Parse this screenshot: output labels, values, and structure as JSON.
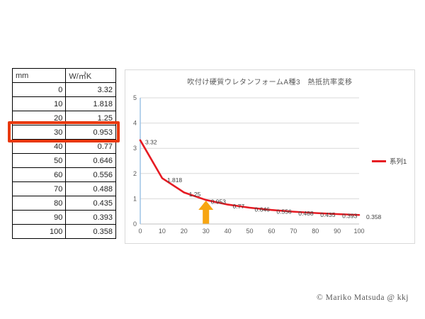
{
  "table": {
    "headers": [
      "mm",
      "W/㎡K"
    ],
    "rows": [
      [
        "0",
        "3.32"
      ],
      [
        "10",
        "1.818"
      ],
      [
        "20",
        "1.25"
      ],
      [
        "30",
        "0.953"
      ],
      [
        "40",
        "0.77"
      ],
      [
        "50",
        "0.646"
      ],
      [
        "60",
        "0.556"
      ],
      [
        "70",
        "0.488"
      ],
      [
        "80",
        "0.435"
      ],
      [
        "90",
        "0.393"
      ],
      [
        "100",
        "0.358"
      ]
    ],
    "highlight_row_index": 3,
    "highlight_color": "#e8380d"
  },
  "chart_data": {
    "type": "line",
    "title": "吹付け硬質ウレタンフォームA種3　熱抵抗率変移",
    "x": [
      0,
      10,
      20,
      30,
      40,
      50,
      60,
      70,
      80,
      90,
      100
    ],
    "series": [
      {
        "name": "系列1",
        "values": [
          3.32,
          1.818,
          1.25,
          0.953,
          0.77,
          0.646,
          0.556,
          0.488,
          0.435,
          0.393,
          0.358
        ],
        "color": "#e61b23"
      }
    ],
    "data_labels": [
      "3.32",
      "1.818",
      "1.25",
      "0.953",
      "0.77",
      "0.646",
      "0.556",
      "0.488",
      "0.435",
      "0.393",
      "0.358"
    ],
    "xlim": [
      0,
      100
    ],
    "ylim": [
      0,
      5
    ],
    "x_ticks": [
      "0",
      "10",
      "20",
      "30",
      "40",
      "50",
      "60",
      "70",
      "80",
      "90",
      "100"
    ],
    "y_ticks": [
      "0",
      "1",
      "2",
      "3",
      "4",
      "5"
    ],
    "grid": true,
    "legend_position": "right",
    "axis_color": "#bfbfbf",
    "y_axis_color": "#9dc3e6",
    "gridline_color": "#d9d9d9",
    "tick_label_color": "#595959",
    "data_label_color": "#404040",
    "annotation": {
      "type": "arrow",
      "x": 30,
      "direction": "up",
      "color": "#f7a511"
    }
  },
  "footer": {
    "copyright": "© Mariko Matsuda @ kkj"
  }
}
